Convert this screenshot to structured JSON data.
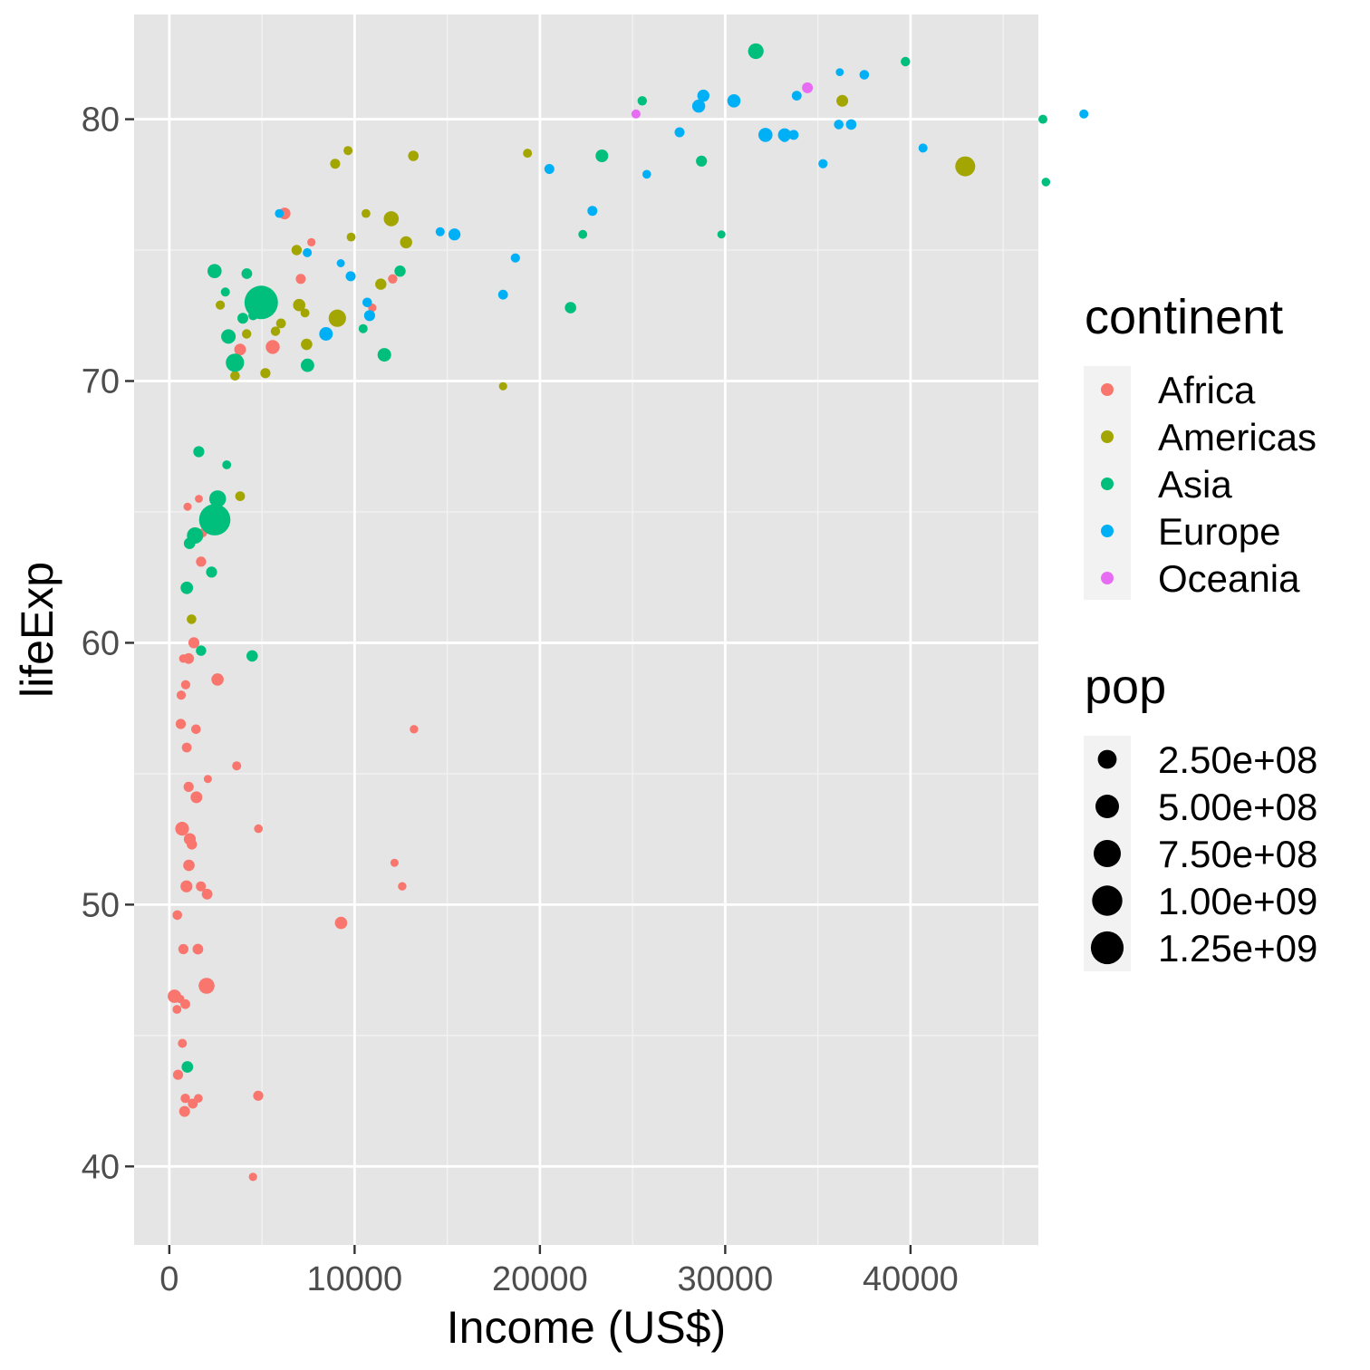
{
  "chart_data": {
    "type": "scatter",
    "title": "",
    "xlabel": "Income (US$)",
    "ylabel": "lifeExp",
    "xlim": [
      -1900,
      46900
    ],
    "ylim": [
      37,
      84
    ],
    "x_ticks": [
      0,
      10000,
      20000,
      30000,
      40000
    ],
    "x_tick_labels": [
      "0",
      "10000",
      "20000",
      "30000",
      "40000"
    ],
    "y_ticks": [
      40,
      50,
      60,
      70,
      80
    ],
    "y_tick_labels": [
      "40",
      "50",
      "60",
      "70",
      "80"
    ],
    "grid": true,
    "panel_background": "#e5e5e5",
    "legend_placement": "right",
    "color_legend": {
      "title": "continent",
      "entries": [
        {
          "label": "Africa",
          "color": "#F8766D"
        },
        {
          "label": "Americas",
          "color": "#A3A500"
        },
        {
          "label": "Asia",
          "color": "#00BF7D"
        },
        {
          "label": "Europe",
          "color": "#00B0F6"
        },
        {
          "label": "Oceania",
          "color": "#E76BF3"
        }
      ]
    },
    "size_legend": {
      "title": "pop",
      "entries": [
        {
          "label": "2.50e+08",
          "value": 250000000
        },
        {
          "label": "5.00e+08",
          "value": 500000000
        },
        {
          "label": "7.50e+08",
          "value": 750000000
        },
        {
          "label": "1.00e+09",
          "value": 1000000000
        },
        {
          "label": "1.25e+09",
          "value": 1250000000
        }
      ]
    },
    "series": [
      {
        "continent": "Africa",
        "points": [
          [
            6223,
            76.4,
            33000000
          ],
          [
            4797,
            42.7,
            12400000
          ],
          [
            1441,
            56.7,
            8100000
          ],
          [
            12570,
            50.7,
            1600000
          ],
          [
            1217,
            52.3,
            14300000
          ],
          [
            430,
            49.6,
            8400000
          ],
          [
            2042,
            50.4,
            17700000
          ],
          [
            706,
            44.7,
            4400000
          ],
          [
            1704,
            50.7,
            10200000
          ],
          [
            986,
            65.2,
            700000
          ],
          [
            278,
            46.5,
            64600000
          ],
          [
            3633,
            55.3,
            3800000
          ],
          [
            1544,
            48.3,
            18000000
          ],
          [
            2082,
            54.8,
            500000
          ],
          [
            5581,
            71.3,
            80300000
          ],
          [
            12154,
            51.6,
            600000
          ],
          [
            641,
            58.0,
            4900000
          ],
          [
            690,
            52.9,
            76500000
          ],
          [
            13206,
            56.7,
            1500000
          ],
          [
            753,
            59.4,
            1700000
          ],
          [
            1327,
            60.0,
            22900000
          ],
          [
            942,
            56.0,
            9900000
          ],
          [
            579,
            46.4,
            1500000
          ],
          [
            1463,
            54.1,
            35300000
          ],
          [
            1569,
            42.6,
            2000000
          ],
          [
            415,
            46.0,
            3200000
          ],
          [
            12057,
            73.9,
            6000000
          ],
          [
            1045,
            59.4,
            19200000
          ],
          [
            759,
            48.3,
            13300000
          ],
          [
            1042,
            54.5,
            12000000
          ],
          [
            1803,
            64.2,
            3300000
          ],
          [
            10957,
            72.8,
            1300000
          ],
          [
            3820,
            71.2,
            33800000
          ],
          [
            824,
            42.1,
            19900000
          ],
          [
            4811,
            52.9,
            2100000
          ],
          [
            620,
            56.9,
            12900000
          ],
          [
            2014,
            46.9,
            135000000
          ],
          [
            7670,
            75.3,
            800000
          ],
          [
            863,
            46.2,
            8900000
          ],
          [
            1598,
            65.5,
            200000
          ],
          [
            1712,
            63.1,
            12300000
          ],
          [
            862,
            42.6,
            6100000
          ],
          [
            926,
            50.7,
            38100000
          ],
          [
            9270,
            49.3,
            43900000
          ],
          [
            2602,
            58.6,
            42300000
          ],
          [
            4513,
            39.6,
            1100000
          ],
          [
            1107,
            52.5,
            38100000
          ],
          [
            882,
            58.4,
            5700000
          ],
          [
            7093,
            73.9,
            10300000
          ],
          [
            1056,
            51.5,
            29200000
          ],
          [
            1271,
            42.4,
            11700000
          ],
          [
            470,
            43.5,
            12300000
          ]
        ]
      },
      {
        "continent": "Americas",
        "points": [
          [
            12779,
            75.3,
            40300000
          ],
          [
            3822,
            65.6,
            9100000
          ],
          [
            9066,
            72.4,
            190000000
          ],
          [
            36319,
            80.7,
            33400000
          ],
          [
            13172,
            78.6,
            16300000
          ],
          [
            7007,
            72.9,
            44200000
          ],
          [
            9645,
            78.8,
            4100000
          ],
          [
            8948,
            78.3,
            11400000
          ],
          [
            6025,
            72.2,
            9300000
          ],
          [
            6873,
            75.0,
            13800000
          ],
          [
            5728,
            71.9,
            6900000
          ],
          [
            5186,
            70.3,
            12600000
          ],
          [
            1202,
            60.9,
            8500000
          ],
          [
            3548,
            70.2,
            7500000
          ],
          [
            7321,
            72.6,
            2800000
          ],
          [
            11978,
            76.2,
            108700000
          ],
          [
            2749,
            72.9,
            5700000
          ],
          [
            9809,
            75.5,
            3200000
          ],
          [
            4173,
            71.8,
            6700000
          ],
          [
            7409,
            71.4,
            28700000
          ],
          [
            19329,
            78.7,
            3900000
          ],
          [
            18009,
            69.8,
            1100000
          ],
          [
            42952,
            78.2,
            301000000
          ],
          [
            10611,
            76.4,
            3400000
          ],
          [
            11416,
            73.7,
            26100000
          ]
        ]
      },
      {
        "continent": "Asia",
        "points": [
          [
            975,
            43.8,
            31900000
          ],
          [
            29796,
            75.6,
            700000
          ],
          [
            1391,
            64.1,
            150400000
          ],
          [
            1714,
            59.7,
            14100000
          ],
          [
            4959,
            73.0,
            1318700000
          ],
          [
            39725,
            82.2,
            6980000
          ],
          [
            2452,
            64.7,
            1110400000
          ],
          [
            3541,
            70.7,
            223500000
          ],
          [
            11606,
            71.0,
            69500000
          ],
          [
            4471,
            59.5,
            27500000
          ],
          [
            25523,
            80.7,
            6400000
          ],
          [
            31656,
            82.6,
            127500000
          ],
          [
            4519,
            72.5,
            6100000
          ],
          [
            1593,
            67.3,
            23300000
          ],
          [
            23348,
            78.6,
            49000000
          ],
          [
            47307,
            77.6,
            2500000
          ],
          [
            10461,
            72.0,
            3900000
          ],
          [
            12452,
            74.2,
            24800000
          ],
          [
            3096,
            66.8,
            2900000
          ],
          [
            944,
            62.1,
            47800000
          ],
          [
            1091,
            63.8,
            28900000
          ],
          [
            22316,
            75.6,
            3200000
          ],
          [
            2606,
            65.5,
            169300000
          ],
          [
            3190,
            71.7,
            91100000
          ],
          [
            21655,
            72.8,
            27600000
          ],
          [
            47143,
            80.0,
            4600000
          ],
          [
            3970,
            72.4,
            20400000
          ],
          [
            4185,
            74.1,
            19300000
          ],
          [
            28718,
            78.4,
            23200000
          ],
          [
            7458,
            70.6,
            65100000
          ],
          [
            2442,
            74.2,
            85300000
          ],
          [
            3025,
            73.4,
            4000000
          ],
          [
            2281,
            62.7,
            22200000
          ]
        ]
      },
      {
        "continent": "Europe",
        "points": [
          [
            5937,
            76.4,
            3600000
          ],
          [
            36126,
            79.8,
            8200000
          ],
          [
            33693,
            79.4,
            10400000
          ],
          [
            7446,
            74.9,
            4600000
          ],
          [
            10681,
            73.0,
            7300000
          ],
          [
            14619,
            75.7,
            4500000
          ],
          [
            22833,
            76.5,
            10200000
          ],
          [
            35278,
            78.3,
            5500000
          ],
          [
            33207,
            79.3,
            5200000
          ],
          [
            30470,
            80.7,
            61100000
          ],
          [
            32170,
            79.4,
            82400000
          ],
          [
            27538,
            79.5,
            10700000
          ],
          [
            18009,
            73.3,
            9900000
          ],
          [
            36181,
            81.8,
            300000
          ],
          [
            40676,
            78.9,
            4100000
          ],
          [
            28570,
            80.5,
            58100000
          ],
          [
            9254,
            74.5,
            700000
          ],
          [
            36798,
            79.8,
            16600000
          ],
          [
            49357,
            80.2,
            4600000
          ],
          [
            15390,
            75.6,
            38500000
          ],
          [
            20510,
            78.1,
            10600000
          ],
          [
            10808,
            72.5,
            22300000
          ],
          [
            9787,
            74.0,
            10200000
          ],
          [
            18678,
            74.7,
            5400000
          ],
          [
            25768,
            77.9,
            2000000
          ],
          [
            28821,
            80.9,
            40400000
          ],
          [
            33860,
            80.9,
            9000000
          ],
          [
            37506,
            81.7,
            7600000
          ],
          [
            8458,
            71.8,
            71200000
          ],
          [
            33203,
            79.4,
            60800000
          ]
        ]
      },
      {
        "continent": "Oceania",
        "points": [
          [
            34435,
            81.2,
            20400000
          ],
          [
            25185,
            80.2,
            4100000
          ]
        ]
      }
    ]
  }
}
